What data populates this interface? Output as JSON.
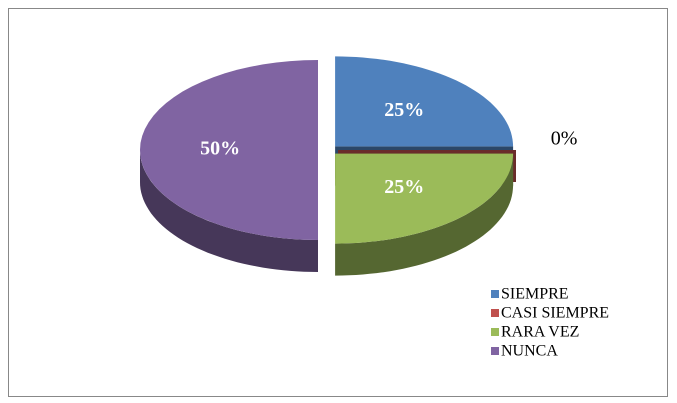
{
  "chart_data": {
    "type": "pie3d",
    "categories": [
      "SIEMPRE",
      "CASI SIEMPRE",
      "RARA VEZ",
      "NUNCA"
    ],
    "values": [
      25,
      0,
      25,
      50
    ],
    "value_labels": [
      "25%",
      "0%",
      "25%",
      "50%"
    ],
    "colors": [
      "#4f81bd",
      "#c0504d",
      "#9bbb59",
      "#8064a2"
    ],
    "legend": "right"
  }
}
